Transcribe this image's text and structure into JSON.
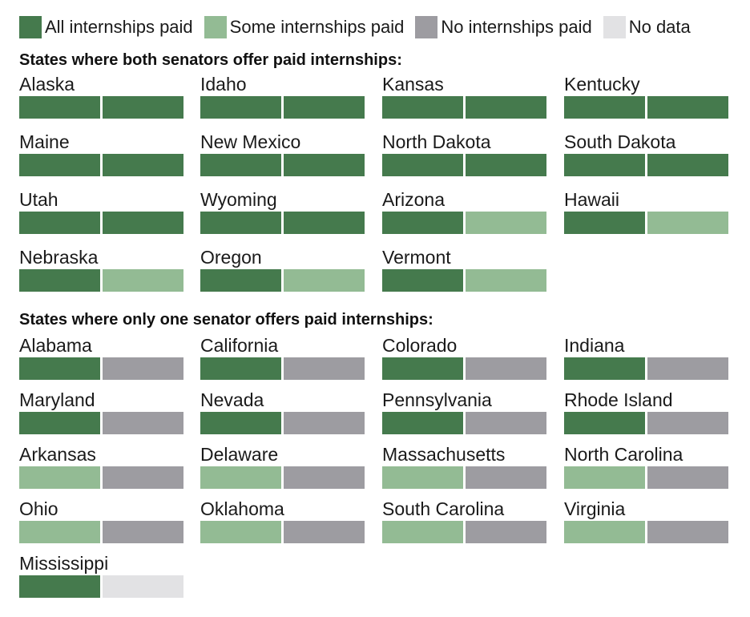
{
  "colors": {
    "all": "#457a4d",
    "some": "#93bb94",
    "none": "#9d9ca1",
    "nodata": "#e2e2e4"
  },
  "legend": [
    {
      "key": "all",
      "label": "All internships paid"
    },
    {
      "key": "some",
      "label": "Some internships paid"
    },
    {
      "key": "none",
      "label": "No internships paid"
    },
    {
      "key": "nodata",
      "label": "No data"
    }
  ],
  "sections": [
    {
      "title": "States where both senators offer paid internships:",
      "states": [
        {
          "name": "Alaska",
          "senators": [
            "all",
            "all"
          ]
        },
        {
          "name": "Idaho",
          "senators": [
            "all",
            "all"
          ]
        },
        {
          "name": "Kansas",
          "senators": [
            "all",
            "all"
          ]
        },
        {
          "name": "Kentucky",
          "senators": [
            "all",
            "all"
          ]
        },
        {
          "name": "Maine",
          "senators": [
            "all",
            "all"
          ]
        },
        {
          "name": "New Mexico",
          "senators": [
            "all",
            "all"
          ]
        },
        {
          "name": "North Dakota",
          "senators": [
            "all",
            "all"
          ]
        },
        {
          "name": "South Dakota",
          "senators": [
            "all",
            "all"
          ]
        },
        {
          "name": "Utah",
          "senators": [
            "all",
            "all"
          ]
        },
        {
          "name": "Wyoming",
          "senators": [
            "all",
            "all"
          ]
        },
        {
          "name": "Arizona",
          "senators": [
            "all",
            "some"
          ]
        },
        {
          "name": "Hawaii",
          "senators": [
            "all",
            "some"
          ]
        },
        {
          "name": "Nebraska",
          "senators": [
            "all",
            "some"
          ]
        },
        {
          "name": "Oregon",
          "senators": [
            "all",
            "some"
          ]
        },
        {
          "name": "Vermont",
          "senators": [
            "all",
            "some"
          ]
        }
      ]
    },
    {
      "title": "States where only one senator offers paid internships:",
      "states": [
        {
          "name": "Alabama",
          "senators": [
            "all",
            "none"
          ]
        },
        {
          "name": "California",
          "senators": [
            "all",
            "none"
          ]
        },
        {
          "name": "Colorado",
          "senators": [
            "all",
            "none"
          ]
        },
        {
          "name": "Indiana",
          "senators": [
            "all",
            "none"
          ]
        },
        {
          "name": "Maryland",
          "senators": [
            "all",
            "none"
          ]
        },
        {
          "name": "Nevada",
          "senators": [
            "all",
            "none"
          ]
        },
        {
          "name": "Pennsylvania",
          "senators": [
            "all",
            "none"
          ]
        },
        {
          "name": "Rhode Island",
          "senators": [
            "all",
            "none"
          ]
        },
        {
          "name": "Arkansas",
          "senators": [
            "some",
            "none"
          ]
        },
        {
          "name": "Delaware",
          "senators": [
            "some",
            "none"
          ]
        },
        {
          "name": "Massachusetts",
          "senators": [
            "some",
            "none"
          ]
        },
        {
          "name": "North Carolina",
          "senators": [
            "some",
            "none"
          ]
        },
        {
          "name": "Ohio",
          "senators": [
            "some",
            "none"
          ]
        },
        {
          "name": "Oklahoma",
          "senators": [
            "some",
            "none"
          ]
        },
        {
          "name": "South Carolina",
          "senators": [
            "some",
            "none"
          ]
        },
        {
          "name": "Virginia",
          "senators": [
            "some",
            "none"
          ]
        },
        {
          "name": "Mississippi",
          "senators": [
            "all",
            "nodata"
          ]
        }
      ]
    }
  ],
  "chart_data": {
    "type": "table",
    "categories": [
      "All internships paid",
      "Some internships paid",
      "No internships paid",
      "No data"
    ]
  }
}
